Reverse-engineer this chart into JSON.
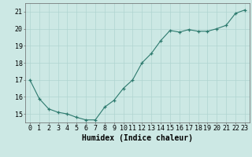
{
  "x": [
    0,
    1,
    2,
    3,
    4,
    5,
    6,
    7,
    8,
    9,
    10,
    11,
    12,
    13,
    14,
    15,
    16,
    17,
    18,
    19,
    20,
    21,
    22,
    23
  ],
  "y": [
    17.0,
    15.9,
    15.3,
    15.1,
    15.0,
    14.8,
    14.65,
    14.65,
    15.4,
    15.8,
    16.5,
    17.0,
    18.0,
    18.55,
    19.3,
    19.9,
    19.8,
    19.95,
    19.85,
    19.85,
    20.0,
    20.2,
    20.9,
    21.1
  ],
  "xlabel": "Humidex (Indice chaleur)",
  "ylim": [
    14.5,
    21.5
  ],
  "xlim": [
    -0.5,
    23.5
  ],
  "yticks": [
    15,
    16,
    17,
    18,
    19,
    20,
    21
  ],
  "xticks": [
    0,
    1,
    2,
    3,
    4,
    5,
    6,
    7,
    8,
    9,
    10,
    11,
    12,
    13,
    14,
    15,
    16,
    17,
    18,
    19,
    20,
    21,
    22,
    23
  ],
  "line_color": "#2d7a6e",
  "marker_color": "#2d7a6e",
  "bg_color": "#cce8e4",
  "grid_color": "#b0d4d0",
  "xlabel_fontsize": 7,
  "tick_fontsize": 6,
  "linewidth": 0.8,
  "markersize": 3.0
}
